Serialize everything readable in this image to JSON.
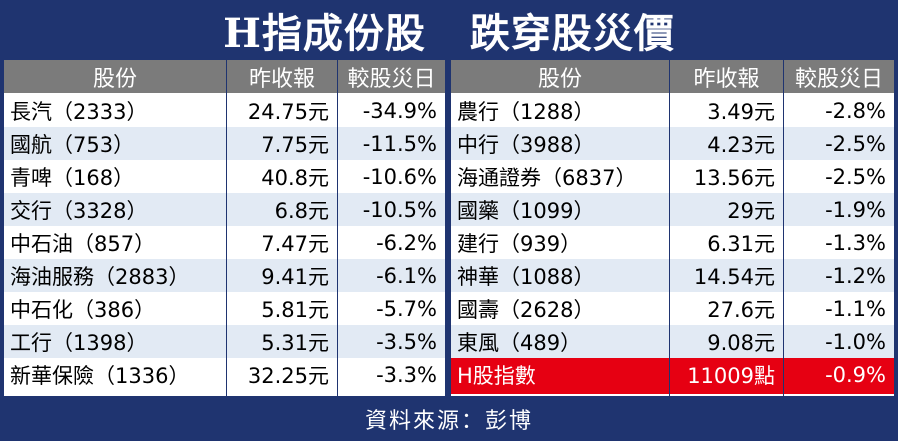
{
  "title": {
    "part1": "H指成份股",
    "part2": "跌穿股災價"
  },
  "headers": {
    "stock": "股份",
    "close": "昨收報",
    "vs_crash": "較股災日"
  },
  "left_rows": [
    {
      "name": "長汽（2333）",
      "close": "24.75元",
      "change": "-34.9%"
    },
    {
      "name": "國航（753）",
      "close": "7.75元",
      "change": "-11.5%"
    },
    {
      "name": "青啤（168）",
      "close": "40.8元",
      "change": "-10.6%"
    },
    {
      "name": "交行（3328）",
      "close": "6.8元",
      "change": "-10.5%"
    },
    {
      "name": "中石油（857）",
      "close": "7.47元",
      "change": "-6.2%"
    },
    {
      "name": "海油服務（2883）",
      "close": "9.41元",
      "change": "-6.1%"
    },
    {
      "name": "中石化（386）",
      "close": "5.81元",
      "change": "-5.7%"
    },
    {
      "name": "工行（1398）",
      "close": "5.31元",
      "change": "-3.5%"
    },
    {
      "name": "新華保險（1336）",
      "close": "32.25元",
      "change": "-3.3%"
    }
  ],
  "right_rows": [
    {
      "name": "農行（1288）",
      "close": "3.49元",
      "change": "-2.8%"
    },
    {
      "name": "中行（3988）",
      "close": "4.23元",
      "change": "-2.5%"
    },
    {
      "name": "海通證券（6837）",
      "close": "13.56元",
      "change": "-2.5%"
    },
    {
      "name": "國藥（1099）",
      "close": "29元",
      "change": "-1.9%"
    },
    {
      "name": "建行（939）",
      "close": "6.31元",
      "change": "-1.3%"
    },
    {
      "name": "神華（1088）",
      "close": "14.54元",
      "change": "-1.2%"
    },
    {
      "name": "國壽（2628）",
      "close": "27.6元",
      "change": "-1.1%"
    },
    {
      "name": "東風（489）",
      "close": "9.08元",
      "change": "-1.0%"
    },
    {
      "name": "H股指數",
      "close": "11009點",
      "change": "-0.9%"
    }
  ],
  "source": "資料來源：彭博",
  "colors": {
    "navy": "#1f3470",
    "header_gray": "#7b7b7b",
    "stripe": "#e2eaf4",
    "highlight_red": "#e60012"
  }
}
